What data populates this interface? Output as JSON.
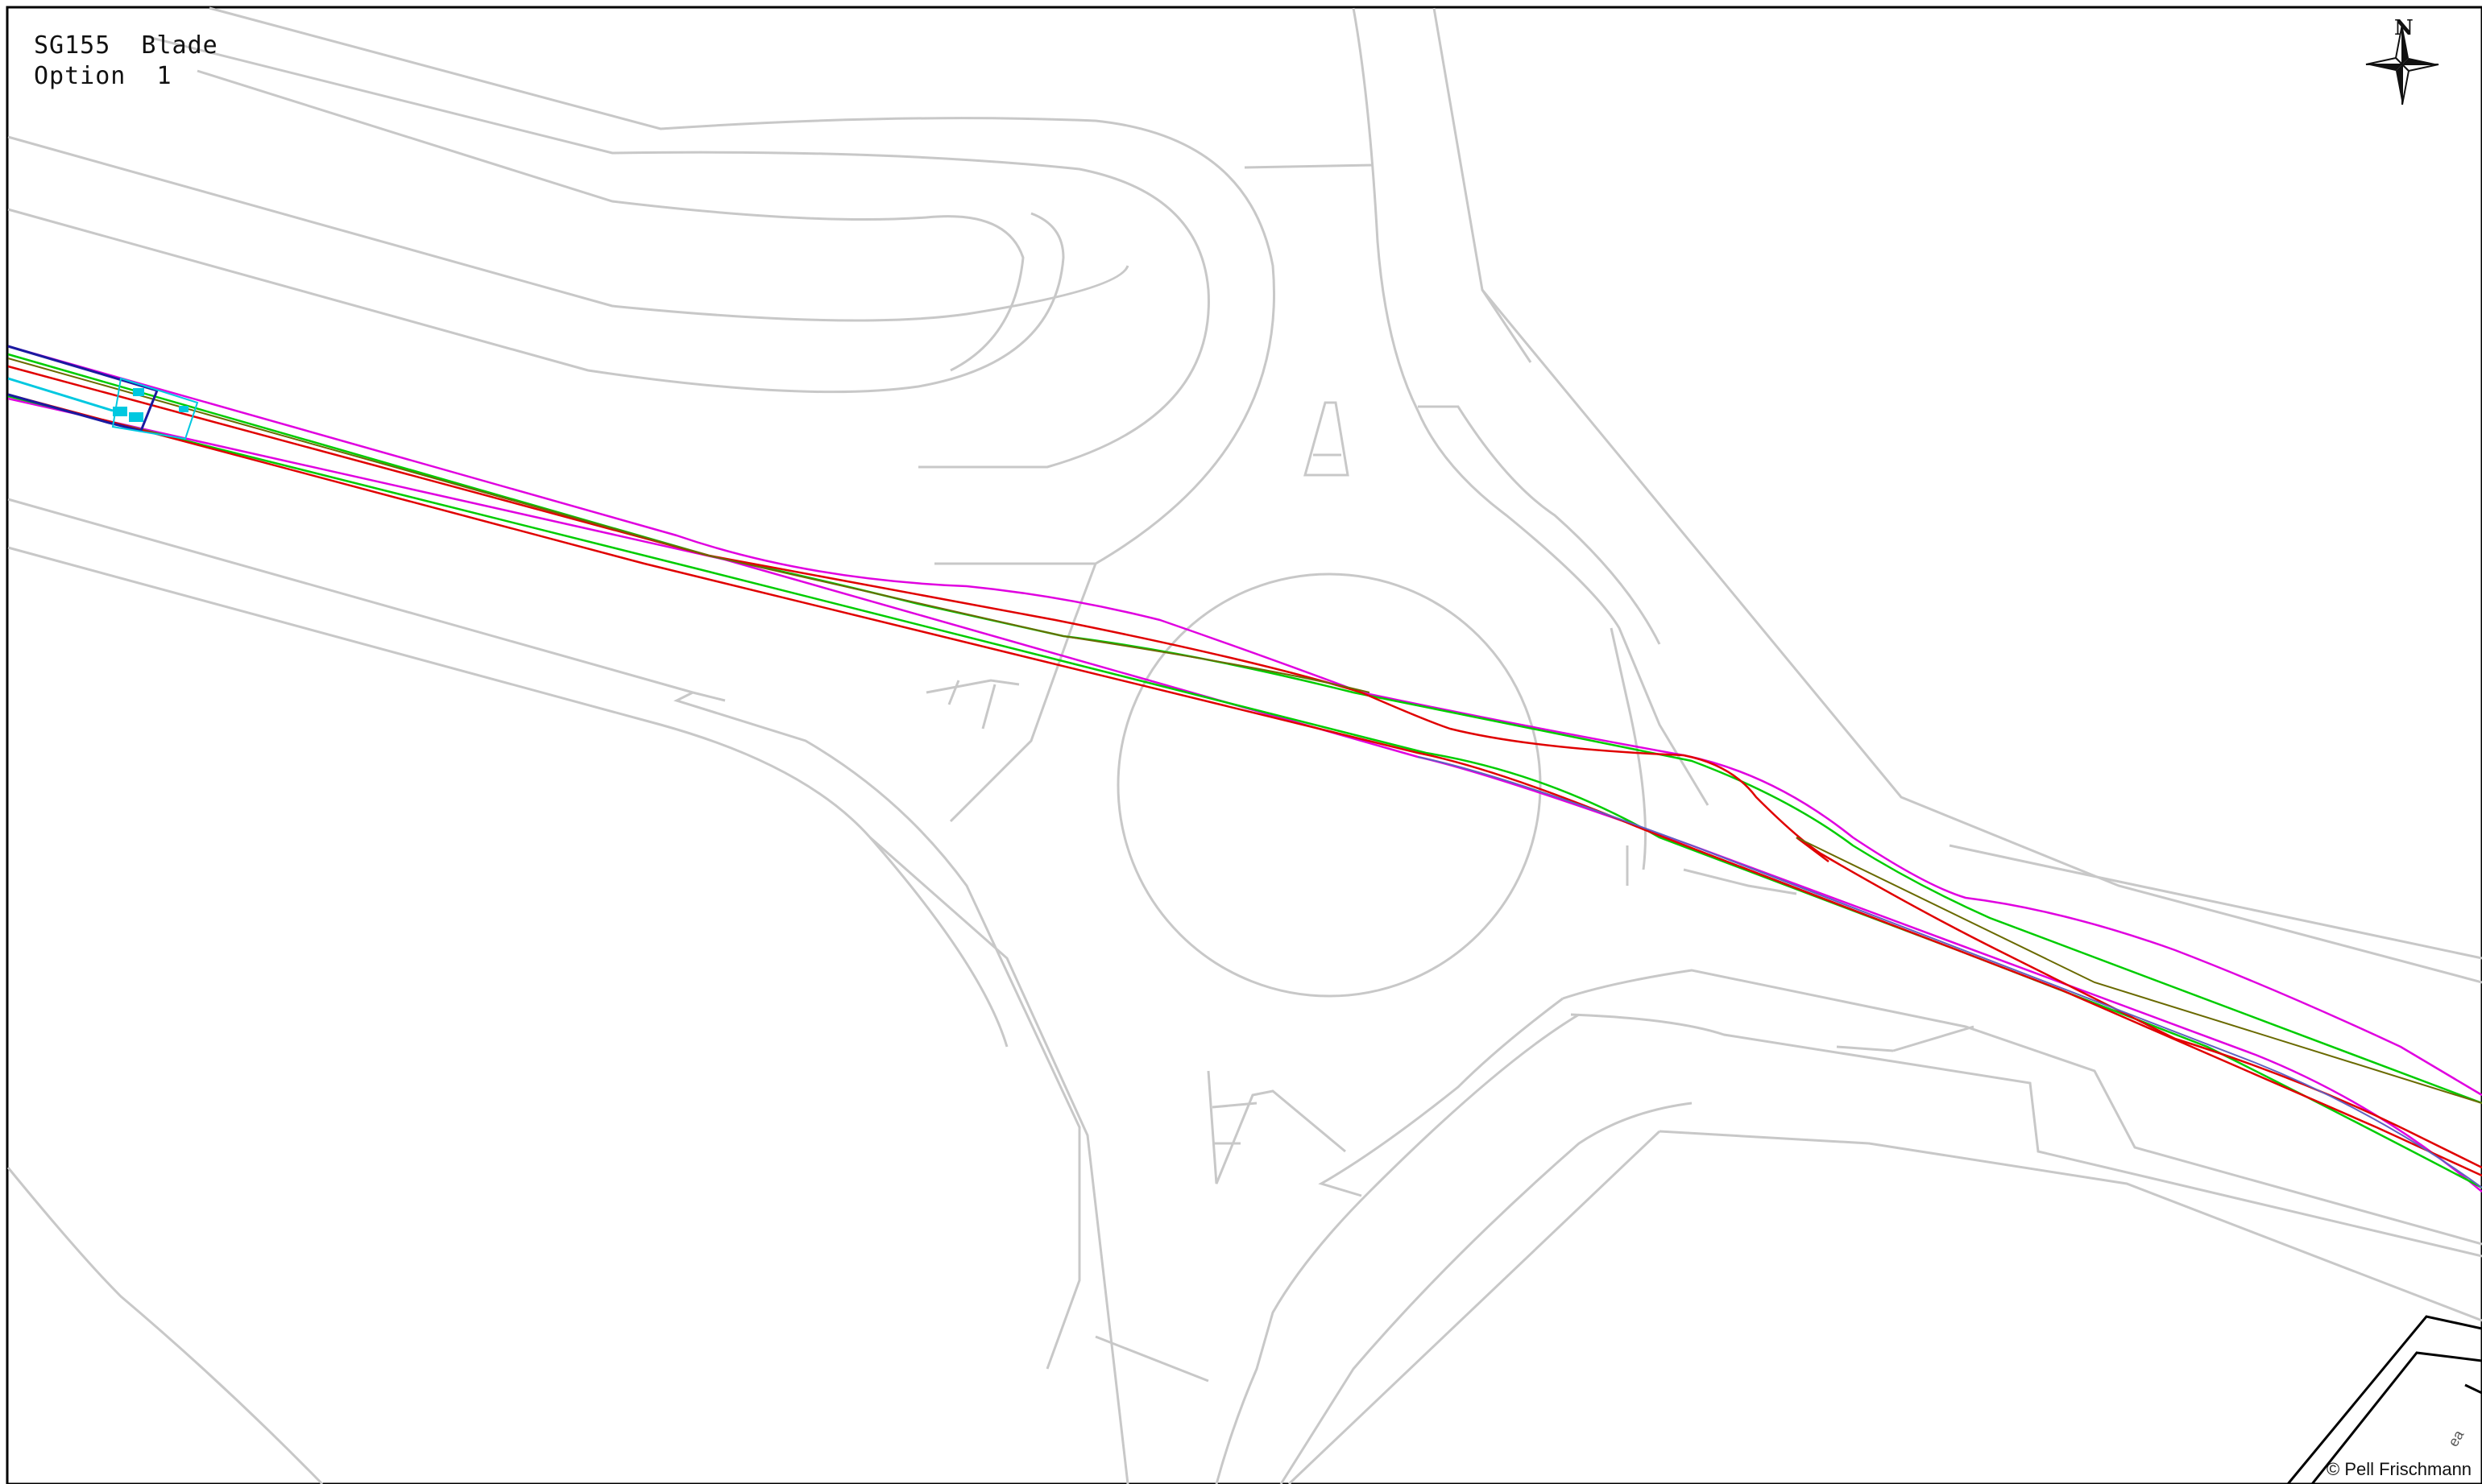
{
  "title_block": {
    "line1": "SG155  Blade",
    "line2": "Option  1"
  },
  "north_arrow": {
    "label": "N",
    "icon": "compass-rose-icon"
  },
  "copyright": "© Pell  Frischmann",
  "stamp": "ea",
  "colors": {
    "background": "#ffffff",
    "base_map": "#c8c8c8",
    "route_red": "#e00000",
    "route_green": "#00cc00",
    "route_magenta": "#e000e0",
    "route_blue": "#1a1aa0",
    "vehicle_cyan": "#00c8e0",
    "frame": "#000000"
  }
}
